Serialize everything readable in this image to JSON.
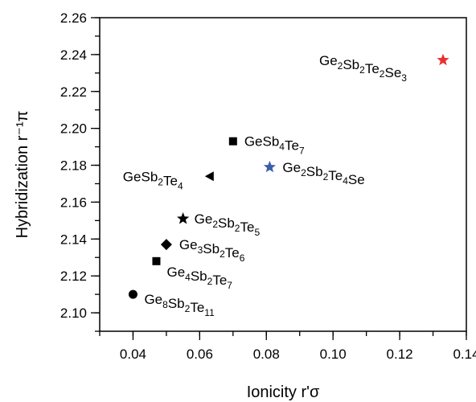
{
  "chart_data": {
    "type": "scatter",
    "title": "",
    "xlabel": "Ionicity r'σ",
    "ylabel": "Hybridization r⁻¹π",
    "xlim": [
      0.03,
      0.14
    ],
    "ylim": [
      2.09,
      2.26
    ],
    "x_ticks": [
      "0.04",
      "0.06",
      "0.08",
      "0.10",
      "0.12",
      "0.14"
    ],
    "y_ticks": [
      "2.10",
      "2.12",
      "2.14",
      "2.16",
      "2.18",
      "2.20",
      "2.22",
      "2.24",
      "2.26"
    ],
    "grid": false,
    "legend": "none",
    "points": [
      {
        "label": "Ge₂Sb₂Te₂Se₃",
        "x": 0.133,
        "y": 2.237,
        "marker": "star",
        "color": "#e8312f"
      },
      {
        "label": "GeSb₄Te₇",
        "x": 0.07,
        "y": 2.193,
        "marker": "square",
        "color": "#000000"
      },
      {
        "label": "Ge₂Sb₂Te₄Se",
        "x": 0.081,
        "y": 2.179,
        "marker": "star",
        "color": "#3a5ea8"
      },
      {
        "label": "GeSb₂Te₄",
        "x": 0.063,
        "y": 2.174,
        "marker": "triangle-left",
        "color": "#000000"
      },
      {
        "label": "Ge₂Sb₂Te₅",
        "x": 0.055,
        "y": 2.151,
        "marker": "star",
        "color": "#000000"
      },
      {
        "label": "Ge₃Sb₂Te₆",
        "x": 0.05,
        "y": 2.137,
        "marker": "diamond",
        "color": "#000000"
      },
      {
        "label": "Ge₄Sb₂Te₇",
        "x": 0.047,
        "y": 2.128,
        "marker": "square",
        "color": "#000000"
      },
      {
        "label": "Ge₈Sb₂Te₁₁",
        "x": 0.04,
        "y": 2.11,
        "marker": "circle",
        "color": "#000000"
      }
    ]
  }
}
